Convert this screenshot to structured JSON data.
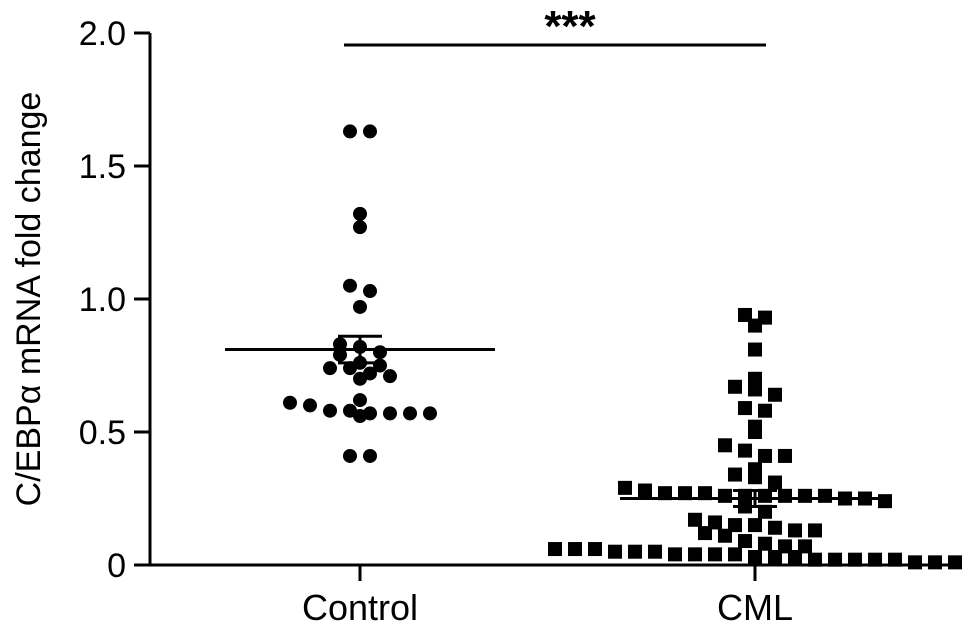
{
  "chart_data": {
    "type": "scatter",
    "ylabel": "C/EBPα mRNA fold change",
    "ylim": [
      0,
      2.0
    ],
    "yticks": [
      "0",
      "0.5",
      "1.0",
      "1.5",
      "2.0"
    ],
    "ytick_values": [
      0,
      0.5,
      1.0,
      1.5,
      2.0
    ],
    "categories": [
      "Control",
      "CML"
    ],
    "significance": "***",
    "series": [
      {
        "category": "Control",
        "marker": "circle",
        "mean": 0.81,
        "sem": 0.05,
        "points": [
          1.63,
          1.63,
          1.32,
          1.27,
          1.05,
          1.03,
          0.97,
          0.83,
          0.82,
          0.8,
          0.79,
          0.76,
          0.75,
          0.74,
          0.74,
          0.72,
          0.71,
          0.7,
          0.62,
          0.61,
          0.6,
          0.58,
          0.58,
          0.57,
          0.57,
          0.57,
          0.57,
          0.56,
          0.41,
          0.41
        ]
      },
      {
        "category": "CML",
        "marker": "square",
        "mean": 0.25,
        "sem": 0.03,
        "points": [
          0.94,
          0.93,
          0.9,
          0.81,
          0.7,
          0.67,
          0.66,
          0.64,
          0.59,
          0.58,
          0.52,
          0.5,
          0.45,
          0.43,
          0.41,
          0.41,
          0.36,
          0.34,
          0.33,
          0.31,
          0.29,
          0.28,
          0.27,
          0.27,
          0.27,
          0.26,
          0.26,
          0.26,
          0.26,
          0.26,
          0.26,
          0.25,
          0.25,
          0.24,
          0.22,
          0.2,
          0.17,
          0.16,
          0.15,
          0.15,
          0.14,
          0.13,
          0.13,
          0.12,
          0.11,
          0.09,
          0.08,
          0.07,
          0.07,
          0.06,
          0.06,
          0.06,
          0.05,
          0.05,
          0.05,
          0.04,
          0.04,
          0.04,
          0.04,
          0.03,
          0.03,
          0.03,
          0.02,
          0.02,
          0.02,
          0.02,
          0.02,
          0.01,
          0.01,
          0.01
        ]
      }
    ]
  }
}
